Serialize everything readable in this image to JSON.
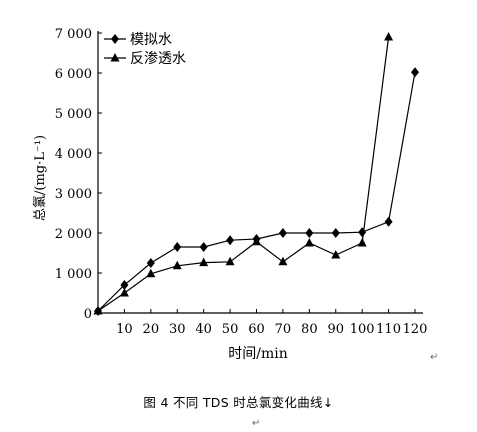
{
  "chart_data": {
    "type": "line",
    "title": "",
    "xlabel": "时间/min",
    "ylabel": "总氯/(mg·L⁻¹)",
    "x": [
      0,
      10,
      20,
      30,
      40,
      50,
      60,
      70,
      80,
      90,
      100,
      110,
      120
    ],
    "xlim": [
      0,
      120
    ],
    "ylim": [
      0,
      7000
    ],
    "xticks": [
      "10",
      "20",
      "30",
      "40",
      "50",
      "60",
      "70",
      "80",
      "90",
      "100",
      "110",
      "120"
    ],
    "xtick_values": [
      10,
      20,
      30,
      40,
      50,
      60,
      70,
      80,
      90,
      100,
      110,
      120
    ],
    "origin_label": "0",
    "yticks": [
      "1 000",
      "2 000",
      "3 000",
      "4 000",
      "5 000",
      "6 000",
      "7 000"
    ],
    "ytick_values": [
      1000,
      2000,
      3000,
      4000,
      5000,
      6000,
      7000
    ],
    "grid": false,
    "legend_position": "top-left",
    "series": [
      {
        "name": "模拟水",
        "marker": "diamond",
        "points": [
          [
            0,
            50
          ],
          [
            10,
            700
          ],
          [
            20,
            1250
          ],
          [
            30,
            1650
          ],
          [
            40,
            1650
          ],
          [
            50,
            1820
          ],
          [
            60,
            1850
          ],
          [
            70,
            2000
          ],
          [
            80,
            2000
          ],
          [
            90,
            2000
          ],
          [
            100,
            2020
          ],
          [
            110,
            2280
          ],
          [
            120,
            6020
          ]
        ]
      },
      {
        "name": "反渗透水",
        "marker": "triangle",
        "points": [
          [
            0,
            50
          ],
          [
            10,
            500
          ],
          [
            20,
            980
          ],
          [
            30,
            1180
          ],
          [
            40,
            1260
          ],
          [
            50,
            1280
          ],
          [
            60,
            1780
          ],
          [
            70,
            1280
          ],
          [
            80,
            1750
          ],
          [
            90,
            1450
          ],
          [
            100,
            1750
          ],
          [
            110,
            6900
          ]
        ]
      }
    ]
  },
  "caption": "图 4   不同 TDS 时总氯变化曲线",
  "marks": {
    "return_symbol": "↵",
    "para_symbol": "↵",
    "caption_symbol": "↓"
  }
}
